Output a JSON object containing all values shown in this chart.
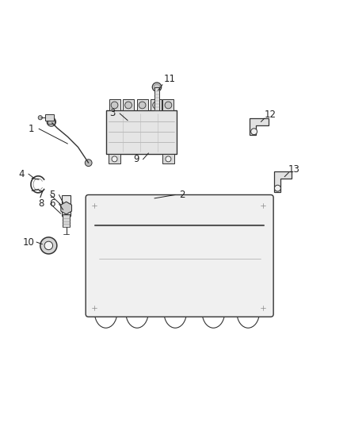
{
  "bg_color": "#ffffff",
  "line_color": "#333333",
  "label_color": "#222222",
  "fig_width": 4.38,
  "fig_height": 5.33,
  "dpi": 100,
  "labels": [
    [
      1,
      0.09,
      0.738,
      0.112,
      0.738,
      0.195,
      0.695
    ],
    [
      2,
      0.525,
      0.548,
      0.505,
      0.548,
      0.445,
      0.538
    ],
    [
      3,
      0.325,
      0.782,
      0.345,
      0.782,
      0.368,
      0.762
    ],
    [
      4,
      0.062,
      0.608,
      0.082,
      0.608,
      0.098,
      0.596
    ],
    [
      5,
      0.15,
      0.548,
      0.17,
      0.548,
      0.182,
      0.525
    ],
    [
      6,
      0.15,
      0.522,
      0.17,
      0.522,
      0.182,
      0.505
    ],
    [
      7,
      0.118,
      0.548,
      0.145,
      0.548,
      0.175,
      0.52
    ],
    [
      8,
      0.118,
      0.522,
      0.145,
      0.522,
      0.175,
      0.494
    ],
    [
      9,
      0.392,
      0.65,
      0.412,
      0.65,
      0.428,
      0.668
    ],
    [
      10,
      0.082,
      0.412,
      0.105,
      0.412,
      0.122,
      0.406
    ],
    [
      11,
      0.488,
      0.882,
      0.468,
      0.865,
      0.455,
      0.848
    ],
    [
      12,
      0.778,
      0.778,
      0.762,
      0.768,
      0.752,
      0.758
    ],
    [
      13,
      0.848,
      0.622,
      0.832,
      0.612,
      0.82,
      0.6
    ]
  ]
}
